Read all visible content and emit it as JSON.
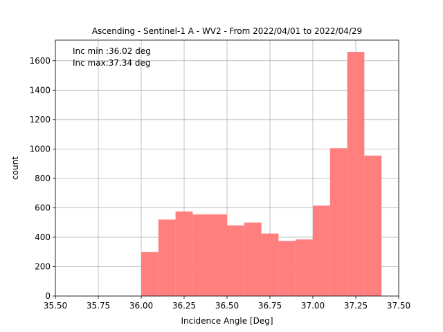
{
  "chart_data": {
    "type": "bar",
    "title": "Ascending - Sentinel-1 A - WV2 - From 2022/04/01 to 2022/04/29",
    "xlabel": "Incidence Angle [Deg]",
    "ylabel": "count",
    "xlim": [
      35.5,
      37.5
    ],
    "ylim": [
      0,
      1740
    ],
    "xticks": [
      35.5,
      35.75,
      36.0,
      36.25,
      36.5,
      36.75,
      37.0,
      37.25,
      37.5
    ],
    "xtick_labels": [
      "35.50",
      "35.75",
      "36.00",
      "36.25",
      "36.50",
      "36.75",
      "37.00",
      "37.25",
      "37.50"
    ],
    "yticks": [
      0,
      200,
      400,
      600,
      800,
      1000,
      1200,
      1400,
      1600
    ],
    "ytick_labels": [
      "0",
      "200",
      "400",
      "600",
      "800",
      "1000",
      "1200",
      "1400",
      "1600"
    ],
    "grid": true,
    "bar_color": "#ff7f7f",
    "bins": [
      {
        "x0": 36.0,
        "x1": 36.1,
        "count": 300
      },
      {
        "x0": 36.1,
        "x1": 36.2,
        "count": 520
      },
      {
        "x0": 36.2,
        "x1": 36.3,
        "count": 575
      },
      {
        "x0": 36.3,
        "x1": 36.5,
        "count": 555
      },
      {
        "x0": 36.5,
        "x1": 36.6,
        "count": 480
      },
      {
        "x0": 36.6,
        "x1": 36.7,
        "count": 500
      },
      {
        "x0": 36.7,
        "x1": 36.8,
        "count": 425
      },
      {
        "x0": 36.8,
        "x1": 36.9,
        "count": 375
      },
      {
        "x0": 36.9,
        "x1": 37.0,
        "count": 385
      },
      {
        "x0": 37.0,
        "x1": 37.1,
        "count": 615
      },
      {
        "x0": 37.1,
        "x1": 37.2,
        "count": 1005
      },
      {
        "x0": 37.2,
        "x1": 37.3,
        "count": 1660
      },
      {
        "x0": 37.3,
        "x1": 37.4,
        "count": 955
      }
    ],
    "annotations": [
      "Inc min :36.02 deg",
      "Inc max:37.34 deg"
    ]
  }
}
